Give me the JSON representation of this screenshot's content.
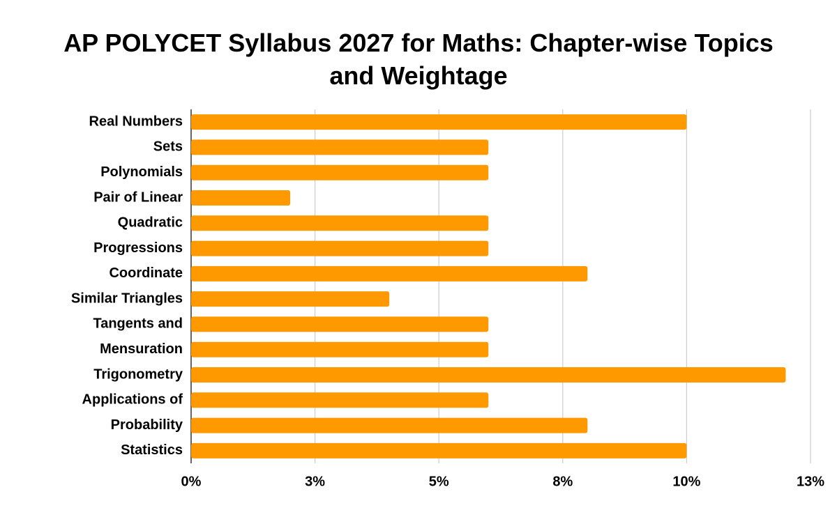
{
  "chart_data": {
    "type": "bar",
    "orientation": "horizontal",
    "title": "AP POLYCET Syllabus 2027 for Maths: Chapter-wise Topics and Weightage",
    "categories": [
      "Real Numbers",
      "Sets",
      "Polynomials",
      "Pair of Linear",
      "Quadratic",
      "Progressions",
      "Coordinate",
      "Similar Triangles",
      "Tangents and",
      "Mensuration",
      "Trigonometry",
      "Applications of",
      "Probability",
      "Statistics"
    ],
    "values": [
      10,
      6,
      6,
      2,
      6,
      6,
      8,
      4,
      6,
      6,
      12,
      6,
      8,
      10
    ],
    "color": "#ff9900",
    "xlim": [
      0,
      12.5
    ],
    "xticks": [
      {
        "value": 0,
        "label": "0%"
      },
      {
        "value": 2.5,
        "label": "3%"
      },
      {
        "value": 5,
        "label": "5%"
      },
      {
        "value": 7.5,
        "label": "8%"
      },
      {
        "value": 10,
        "label": "10%"
      },
      {
        "value": 12.5,
        "label": "13%"
      }
    ],
    "grid": true
  }
}
